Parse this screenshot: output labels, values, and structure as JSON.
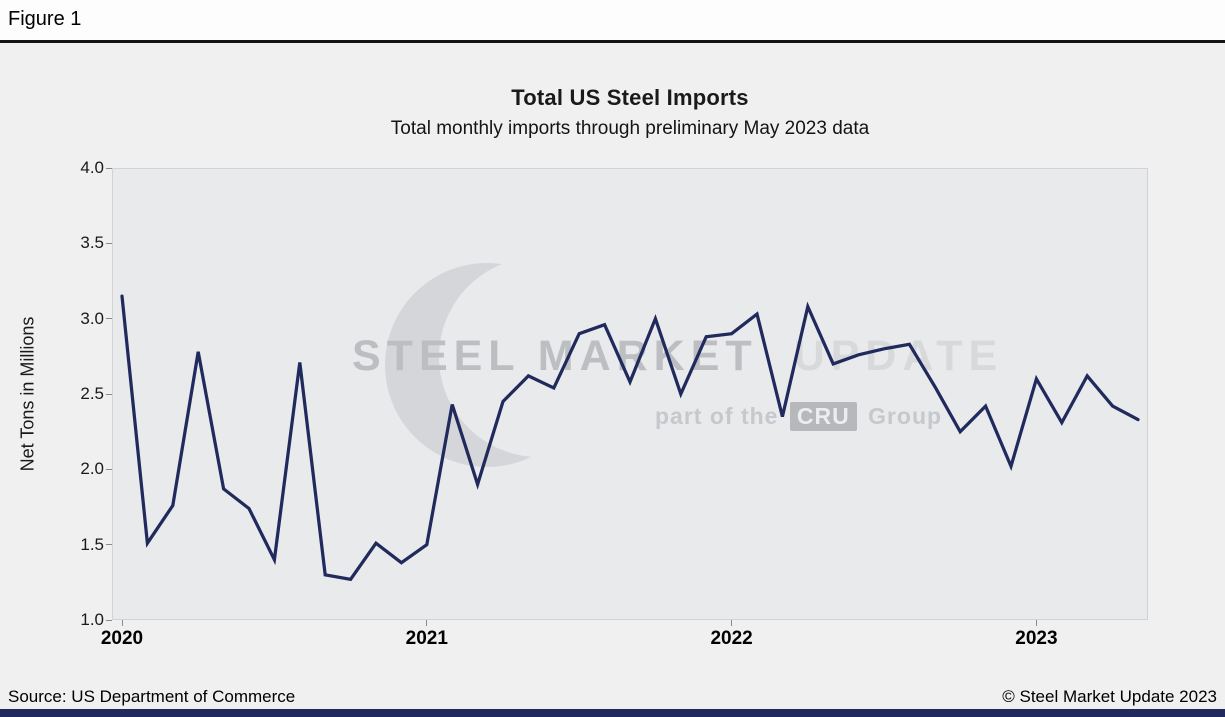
{
  "figure_label": "Figure 1",
  "chart": {
    "title": "Total US Steel Imports",
    "subtitle": "Total monthly imports through preliminary May 2023 data",
    "ylabel": "Net Tons in Millions"
  },
  "watermark": {
    "brand_primary": "STEEL MARKET",
    "brand_secondary": "UPDATE",
    "tagline_prefix": "part of the",
    "tagline_box": "CRU",
    "tagline_suffix": "Group"
  },
  "footer": {
    "source": "Source: US Department of Commerce",
    "copyright": "© Steel Market Update 2023"
  },
  "colors": {
    "line": "#212a5c",
    "bottom_bar": "#212a5c",
    "chart_background": "#f0f0f1",
    "plot_background": "#e9eaec"
  },
  "chart_data": {
    "type": "line",
    "title": "Total US Steel Imports",
    "subtitle": "Total monthly imports through preliminary May 2023 data",
    "xlabel": "",
    "ylabel": "Net Tons in Millions",
    "ylim": [
      1.0,
      4.0
    ],
    "y_ticks": [
      1.0,
      1.5,
      2.0,
      2.5,
      3.0,
      3.5,
      4.0
    ],
    "x_tick_labels": [
      "2020",
      "2021",
      "2022",
      "2023"
    ],
    "grid": false,
    "legend": "none",
    "series_name": "Total monthly US steel imports (net tons, millions)",
    "x": [
      "2020-01",
      "2020-02",
      "2020-03",
      "2020-04",
      "2020-05",
      "2020-06",
      "2020-07",
      "2020-08",
      "2020-09",
      "2020-10",
      "2020-11",
      "2020-12",
      "2021-01",
      "2021-02",
      "2021-03",
      "2021-04",
      "2021-05",
      "2021-06",
      "2021-07",
      "2021-08",
      "2021-09",
      "2021-10",
      "2021-11",
      "2021-12",
      "2022-01",
      "2022-02",
      "2022-03",
      "2022-04",
      "2022-05",
      "2022-06",
      "2022-07",
      "2022-08",
      "2022-09",
      "2022-10",
      "2022-11",
      "2022-12",
      "2023-01",
      "2023-02",
      "2023-03",
      "2023-04",
      "2023-05"
    ],
    "values": [
      3.15,
      1.51,
      1.76,
      2.78,
      1.87,
      1.74,
      1.4,
      2.71,
      1.3,
      1.27,
      1.51,
      1.38,
      1.5,
      2.43,
      1.9,
      2.45,
      2.62,
      2.54,
      2.9,
      2.96,
      2.58,
      3.0,
      2.5,
      2.88,
      2.9,
      3.03,
      2.35,
      3.08,
      2.7,
      2.76,
      2.8,
      2.83,
      2.55,
      2.25,
      2.42,
      2.02,
      2.6,
      2.31,
      2.62,
      2.42,
      2.33
    ]
  }
}
